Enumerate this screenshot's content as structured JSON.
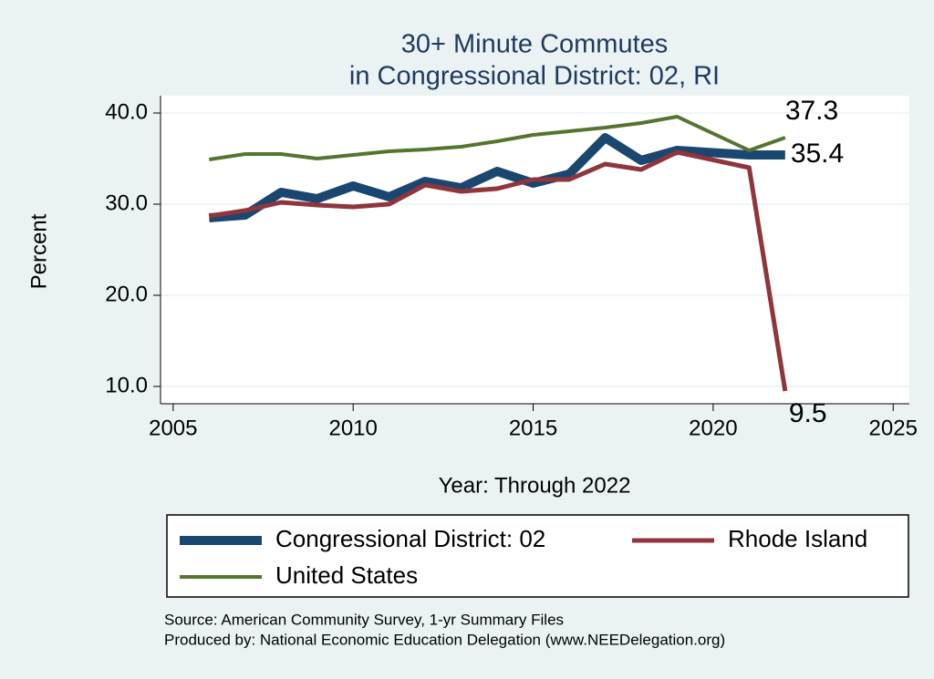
{
  "chart_data": {
    "type": "line",
    "title": [
      "30+ Minute Commutes",
      "in Congressional District:  02, RI"
    ],
    "x_label": "Year: Through 2022",
    "y_label": "Percent",
    "x": [
      2006,
      2007,
      2008,
      2009,
      2010,
      2011,
      2012,
      2013,
      2014,
      2015,
      2016,
      2017,
      2018,
      2019,
      2021,
      2022
    ],
    "series": [
      {
        "name": "Congressional District:  02",
        "color": "#1a476f",
        "width": 10,
        "values": [
          28.5,
          28.8,
          31.3,
          30.6,
          32.0,
          30.8,
          32.5,
          31.8,
          33.6,
          32.3,
          33.3,
          37.3,
          34.8,
          35.9,
          35.4,
          35.4
        ]
      },
      {
        "name": "Rhode Island",
        "color": "#90353b",
        "width": 5,
        "values": [
          28.7,
          29.3,
          30.2,
          29.9,
          29.7,
          30.0,
          32.1,
          31.4,
          31.7,
          32.7,
          32.7,
          34.4,
          33.8,
          35.7,
          34.0,
          9.5
        ]
      },
      {
        "name": "United States",
        "color": "#55752f",
        "width": 4,
        "values": [
          34.9,
          35.5,
          35.5,
          35.0,
          35.4,
          35.8,
          36.0,
          36.3,
          36.9,
          37.6,
          38.0,
          38.4,
          38.9,
          39.6,
          35.9,
          37.3
        ]
      }
    ],
    "xlim": [
      2004.65,
      2025.45
    ],
    "xticks": [
      2005,
      2010,
      2015,
      2020,
      2025
    ],
    "ylim": [
      8.1,
      41.9
    ],
    "yticks": [
      {
        "value": 10,
        "label": "10.0"
      },
      {
        "value": 20,
        "label": "20.0"
      },
      {
        "value": 30,
        "label": "30.0"
      },
      {
        "value": 40,
        "label": "40.0"
      }
    ],
    "grid": true,
    "notes": [
      "Source: American Community Survey, 1-yr Summary Files",
      "Produced by: National Economic Education Delegation (www.NEEDelegation.org)"
    ]
  }
}
